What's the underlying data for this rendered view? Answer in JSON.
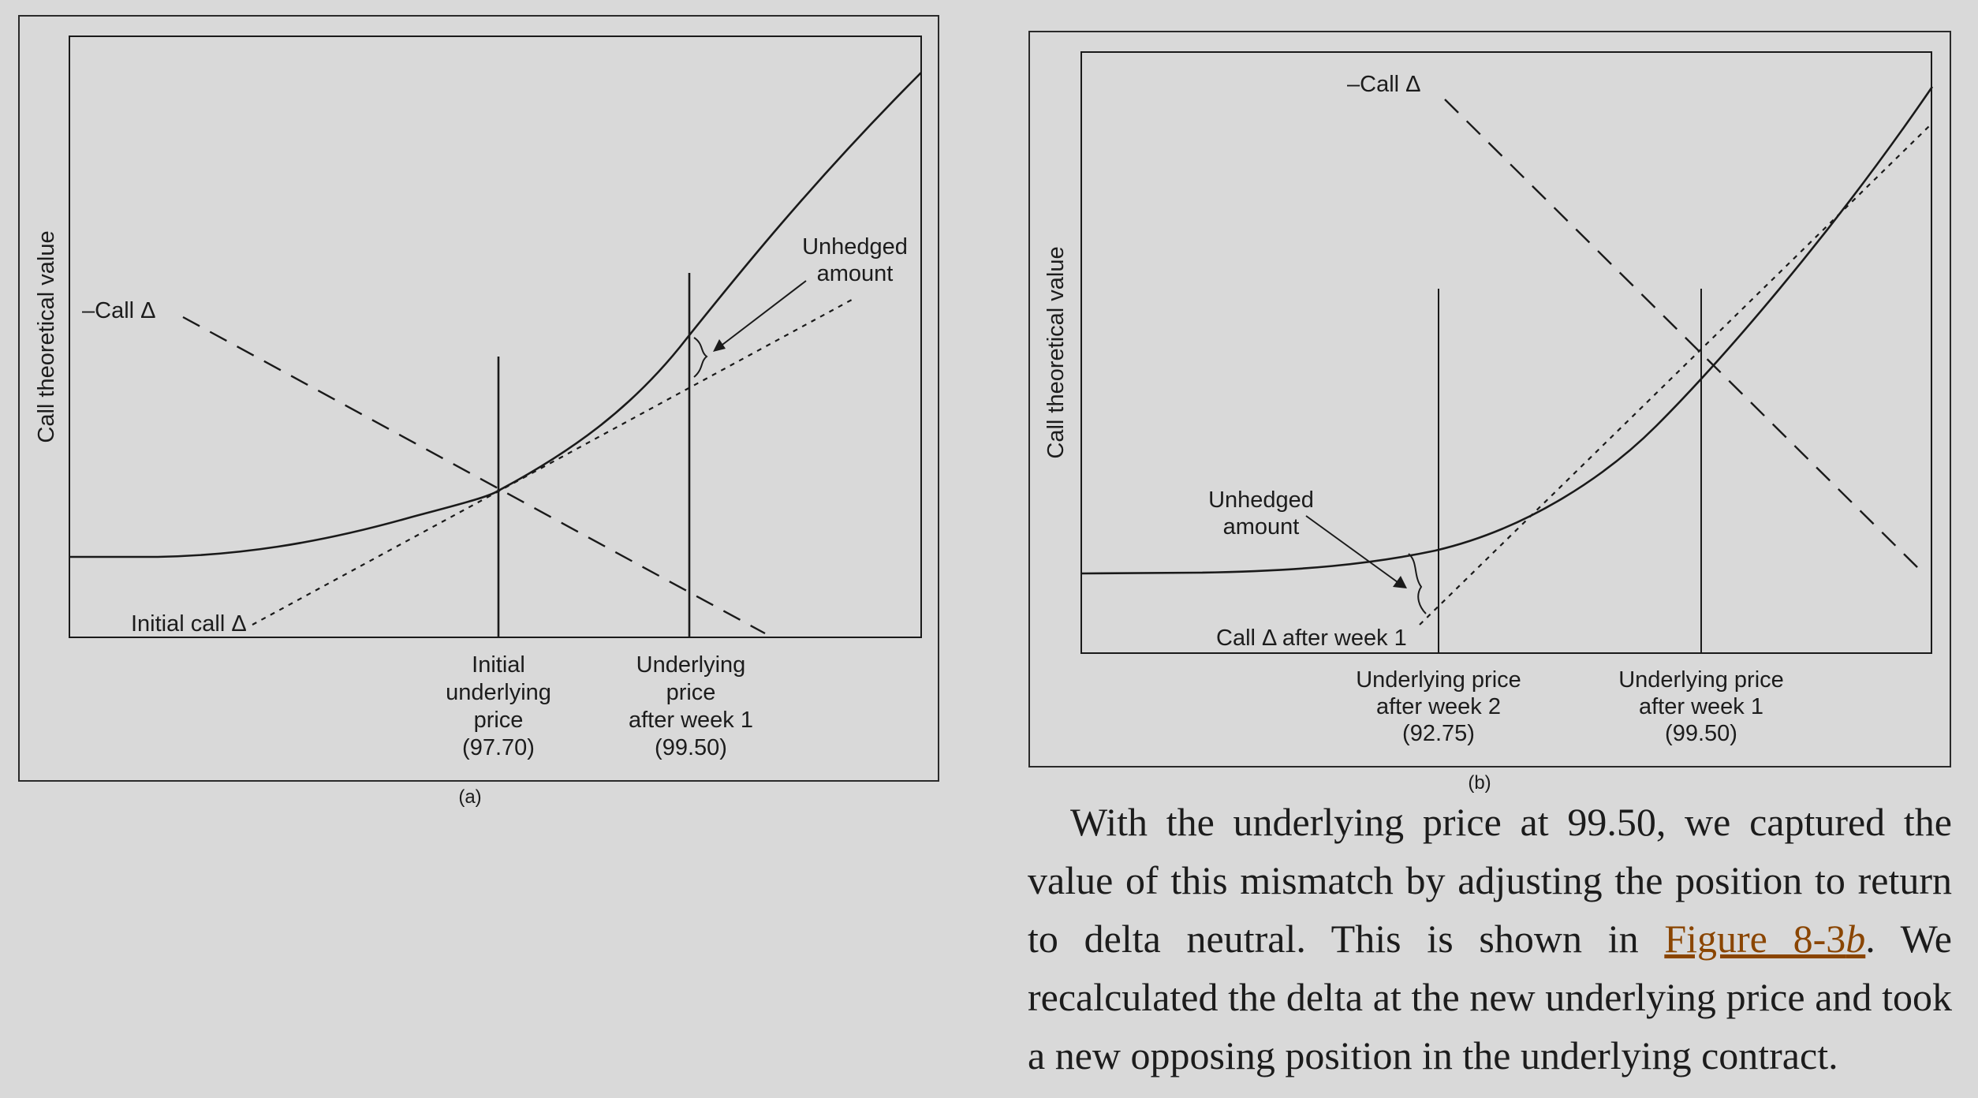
{
  "figure_a": {
    "caption": "(a)",
    "y_axis_label": "Call theoretical value",
    "neg_call_delta_label": "–Call Δ",
    "initial_call_delta_label": "Initial call Δ",
    "unhedged_line1": "Unhedged",
    "unhedged_line2": "amount",
    "marker_initial": [
      "Initial",
      "underlying",
      "price",
      "(97.70)"
    ],
    "marker_week1": [
      "Underlying",
      "price",
      "after week 1",
      "(99.50)"
    ]
  },
  "figure_b": {
    "caption": "(b)",
    "y_axis_label": "Call theoretical value",
    "neg_call_delta_label": "–Call Δ",
    "call_delta_week1_label": "Call Δ after week 1",
    "unhedged_line1": "Unhedged",
    "unhedged_line2": "amount",
    "marker_week2": [
      "Underlying price",
      "after week 2",
      "(92.75)"
    ],
    "marker_week1": [
      "Underlying price",
      "after week 1",
      "(99.50)"
    ]
  },
  "paragraph": {
    "before_link": "With the underlying price at 99.50, we captured the value of this mismatch by adjusting the position to re­turn to delta neutral. This is shown in ",
    "link_prefix": "Figure 8-3",
    "link_italic": "b",
    "after_link": ". We recalculated the delta at the new underlying price and took a new opposing position in the underlying contract."
  }
}
